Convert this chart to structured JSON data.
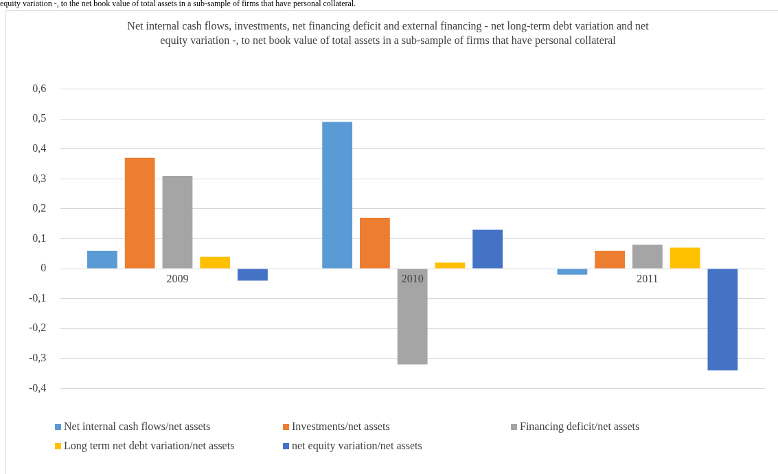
{
  "chart_data": {
    "type": "bar",
    "title": "Net internal cash flows, investments, net financing deficit and external financing - net long-term debt variation and net equity variation -, to net book value of total assets in a sub-sample of firms that have personal collateral",
    "annotations": [
      "equity variation -, to the net book value of total assets in a sub-sample of firms that have personal collateral."
    ],
    "categories": [
      "2009",
      "2010",
      "2011"
    ],
    "series": [
      {
        "name": "Net internal cash flows/net assets",
        "color": "#5b9bd5",
        "values": [
          0.06,
          0.49,
          -0.02
        ]
      },
      {
        "name": "Investments/net assets",
        "color": "#ed7d31",
        "values": [
          0.37,
          0.17,
          0.06
        ]
      },
      {
        "name": "Financing deficit/net assets",
        "color": "#a5a5a5",
        "values": [
          0.31,
          -0.32,
          0.08
        ]
      },
      {
        "name": "Long term net debt variation/net assets",
        "color": "#ffc000",
        "values": [
          0.04,
          0.02,
          0.07
        ]
      },
      {
        "name": "net equity variation/net assets",
        "color": "#4472c4",
        "values": [
          -0.04,
          0.13,
          -0.34
        ]
      }
    ],
    "ylim": [
      -0.4,
      0.6
    ],
    "yticks": [
      {
        "value": -0.4,
        "label": "-0,4"
      },
      {
        "value": -0.3,
        "label": "-0,3"
      },
      {
        "value": -0.2,
        "label": "-0,2"
      },
      {
        "value": -0.1,
        "label": "-0,1"
      },
      0,
      {
        "value": 0.1,
        "label": "0,1"
      },
      {
        "value": 0.2,
        "label": "0,2"
      },
      {
        "value": 0.3,
        "label": "0,3"
      },
      {
        "value": 0.4,
        "label": "0,4"
      },
      {
        "value": 0.5,
        "label": "0,5"
      },
      {
        "value": 0.6,
        "label": "0,6"
      }
    ],
    "grid": "y",
    "legend": "bottom"
  }
}
